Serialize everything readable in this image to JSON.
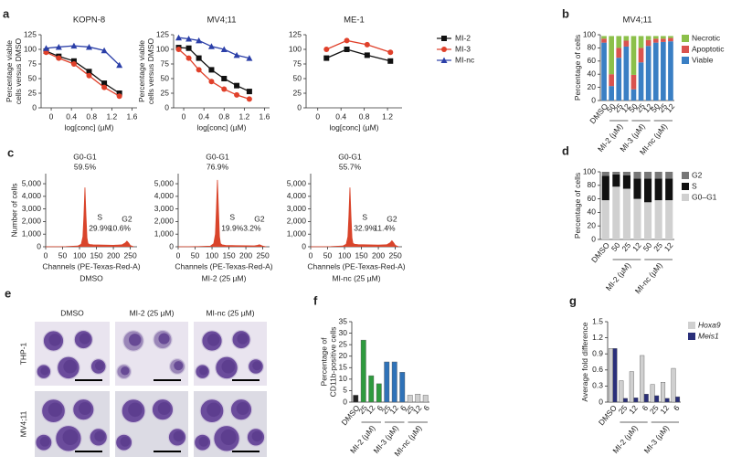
{
  "chart_data": [
    {
      "panel": "a",
      "type": "line",
      "title": "KOPN-8",
      "xlabel": "log[conc] (µM)",
      "ylabel": [
        "Percentage viable",
        "cells versus DMSO"
      ],
      "xlim": [
        -0.2,
        1.7
      ],
      "xticks": [
        0,
        0.4,
        0.8,
        1.2,
        1.6
      ],
      "ylim": [
        0,
        125
      ],
      "yticks": [
        0,
        25,
        50,
        75,
        100,
        125
      ],
      "x": [
        -0.1,
        0.15,
        0.45,
        0.75,
        1.05,
        1.35
      ],
      "series": [
        {
          "name": "MI-2",
          "color": "#111111",
          "marker": "square",
          "values": [
            97,
            88,
            80,
            62,
            42,
            25
          ]
        },
        {
          "name": "MI-3",
          "color": "#e0402a",
          "marker": "circle",
          "values": [
            95,
            85,
            75,
            55,
            35,
            20
          ]
        },
        {
          "name": "MI-nc",
          "color": "#2b3fa8",
          "marker": "triangle",
          "values": [
            102,
            104,
            106,
            104,
            98,
            73
          ]
        }
      ]
    },
    {
      "type": "line",
      "title": "MV4;11",
      "xlabel": "log[conc] (µM)",
      "ylabel": [
        "Percentage viable",
        "cells versus DMSO"
      ],
      "xlim": [
        -0.2,
        1.7
      ],
      "xticks": [
        0,
        0.4,
        0.8,
        1.2,
        1.6
      ],
      "ylim": [
        0,
        125
      ],
      "yticks": [
        0,
        25,
        50,
        75,
        100,
        125
      ],
      "x": [
        -0.1,
        0.1,
        0.3,
        0.55,
        0.8,
        1.05,
        1.3
      ],
      "series": [
        {
          "name": "MI-2",
          "color": "#111111",
          "marker": "square",
          "values": [
            103,
            102,
            85,
            65,
            50,
            38,
            28
          ]
        },
        {
          "name": "MI-3",
          "color": "#e0402a",
          "marker": "circle",
          "values": [
            100,
            85,
            65,
            45,
            32,
            22,
            15
          ]
        },
        {
          "name": "MI-nc",
          "color": "#2b3fa8",
          "marker": "triangle",
          "values": [
            120,
            118,
            115,
            105,
            100,
            90,
            85
          ]
        }
      ]
    },
    {
      "type": "line",
      "title": "ME-1",
      "xlabel": "log[conc] (µM)",
      "legend": "right-outside",
      "xlim": [
        -0.2,
        1.45
      ],
      "xticks": [
        0,
        0.4,
        0.8,
        1.2
      ],
      "ylim": [
        0,
        125
      ],
      "yticks": [
        0,
        25,
        50,
        75,
        100,
        125
      ],
      "x": [
        0.15,
        0.5,
        0.85,
        1.25
      ],
      "series": [
        {
          "name": "MI-2",
          "color": "#111111",
          "marker": "square",
          "values": [
            85,
            100,
            90,
            80
          ]
        },
        {
          "name": "MI-3",
          "color": "#e0402a",
          "marker": "circle",
          "values": [
            100,
            115,
            108,
            95
          ]
        },
        {
          "name": "MI-nc",
          "color": "#2b3fa8",
          "marker": "triangle",
          "values": [
            null,
            null,
            null,
            null
          ]
        }
      ]
    },
    {
      "panel": "b",
      "type": "bar",
      "stacked": true,
      "title": "MV4;11",
      "ylabel": "Percentage of cells",
      "legend": "right-outside",
      "ylim": [
        0,
        100
      ],
      "yticks": [
        0,
        20,
        40,
        60,
        80,
        100
      ],
      "categories": [
        "DMSO",
        "50",
        "25",
        "12",
        "50",
        "25",
        "12",
        "50",
        "25",
        "12"
      ],
      "groups": [
        "MI-2 (µM)",
        "MI-3 (µM)",
        "MI-nc (µM)"
      ],
      "series": [
        {
          "name": "Viable",
          "color": "#3a7fc4",
          "values": [
            88,
            22,
            65,
            82,
            17,
            58,
            83,
            88,
            89,
            90
          ]
        },
        {
          "name": "Apoptotic",
          "color": "#d9534f",
          "values": [
            6,
            18,
            15,
            9,
            22,
            22,
            9,
            6,
            5,
            5
          ]
        },
        {
          "name": "Necrotic",
          "color": "#8cc04a",
          "values": [
            4,
            58,
            18,
            7,
            59,
            18,
            6,
            4,
            4,
            3
          ]
        }
      ]
    },
    {
      "panel": "c",
      "type": "area",
      "xlabel": "Channels (PE-Texas-Red-A)",
      "ylabel": "Number of cells",
      "subtitle": "DMSO",
      "color": "#d9442b",
      "xlim": [
        0,
        270
      ],
      "xticks": [
        0,
        50,
        100,
        150,
        200,
        250
      ],
      "ylim": [
        0,
        5800
      ],
      "yticks": [
        0,
        {
          "value": 1000,
          "label": "1,000"
        },
        {
          "value": 2000,
          "label": "2,000"
        },
        {
          "value": 3000,
          "label": "3,000"
        },
        {
          "value": 4000,
          "label": "4,000"
        },
        {
          "value": 5000,
          "label": "5,000"
        }
      ],
      "x": [
        0,
        60,
        95,
        105,
        110,
        113,
        116,
        119,
        122,
        125,
        130,
        140,
        170,
        200,
        225,
        235,
        240,
        245,
        250,
        260
      ],
      "values": [
        0,
        20,
        60,
        200,
        800,
        2500,
        4700,
        2500,
        700,
        250,
        180,
        150,
        130,
        120,
        150,
        300,
        450,
        300,
        100,
        0
      ],
      "annotations": [
        {
          "phase": "G0-G1",
          "percent": "59.5%"
        },
        {
          "phase": "S",
          "percent": "29.9%"
        },
        {
          "phase": "G2",
          "percent": "10.6%"
        }
      ]
    },
    {
      "type": "area",
      "xlabel": "Channels (PE-Texas-Red-A)",
      "subtitle": "MI-2 (25 µM)",
      "color": "#d9442b",
      "xlim": [
        0,
        270
      ],
      "xticks": [
        0,
        50,
        100,
        150,
        200,
        250
      ],
      "ylim": [
        0,
        5800
      ],
      "yticks": [
        0,
        {
          "value": 1000,
          "label": "1,000"
        },
        {
          "value": 2000,
          "label": "2,000"
        },
        {
          "value": 3000,
          "label": "3,000"
        },
        {
          "value": 4000,
          "label": "4,000"
        },
        {
          "value": 5000,
          "label": "5,000"
        }
      ],
      "x": [
        0,
        60,
        95,
        105,
        110,
        113,
        116,
        119,
        122,
        125,
        130,
        140,
        170,
        200,
        225,
        235,
        240,
        245,
        250,
        260
      ],
      "values": [
        0,
        20,
        50,
        250,
        1000,
        3000,
        5300,
        3000,
        800,
        250,
        150,
        110,
        90,
        80,
        70,
        120,
        160,
        110,
        50,
        0
      ],
      "annotations": [
        {
          "phase": "G0-G1",
          "percent": "76.9%"
        },
        {
          "phase": "S",
          "percent": "19.9%"
        },
        {
          "phase": "G2",
          "percent": "3.2%"
        }
      ]
    },
    {
      "type": "area",
      "xlabel": "Channels (PE-Texas-Red-A)",
      "subtitle": "MI-nc (25 µM)",
      "color": "#d9442b",
      "xlim": [
        0,
        270
      ],
      "xticks": [
        0,
        50,
        100,
        150,
        200,
        250
      ],
      "ylim": [
        0,
        5800
      ],
      "yticks": [
        0,
        {
          "value": 1000,
          "label": "1,000"
        },
        {
          "value": 2000,
          "label": "2,000"
        },
        {
          "value": 3000,
          "label": "3,000"
        },
        {
          "value": 4000,
          "label": "4,000"
        },
        {
          "value": 5000,
          "label": "5,000"
        }
      ],
      "x": [
        0,
        60,
        95,
        105,
        110,
        113,
        116,
        119,
        122,
        125,
        130,
        140,
        170,
        200,
        225,
        235,
        240,
        245,
        250,
        260
      ],
      "values": [
        0,
        20,
        60,
        200,
        800,
        2500,
        4700,
        2500,
        700,
        260,
        200,
        170,
        150,
        130,
        160,
        320,
        480,
        320,
        110,
        0
      ],
      "annotations": [
        {
          "phase": "G0-G1",
          "percent": "55.7%"
        },
        {
          "phase": "S",
          "percent": "32.9%"
        },
        {
          "phase": "G2",
          "percent": "11.4%"
        }
      ]
    },
    {
      "panel": "d",
      "type": "bar",
      "stacked": true,
      "ylabel": "Percentage of cells",
      "legend": "right-outside",
      "ylim": [
        0,
        100
      ],
      "yticks": [
        0,
        20,
        40,
        60,
        80,
        100
      ],
      "categories": [
        "DMSO",
        "50",
        "25",
        "12",
        "50",
        "25",
        "12"
      ],
      "groups": [
        "MI-2 (µM)",
        "MI-nc (µM)"
      ],
      "series": [
        {
          "name": "G0–G1",
          "color": "#d0d0d0",
          "values": [
            58,
            78,
            75,
            60,
            55,
            58,
            58
          ]
        },
        {
          "name": "S",
          "color": "#111111",
          "values": [
            36,
            18,
            20,
            30,
            35,
            32,
            32
          ]
        },
        {
          "name": "G2",
          "color": "#777777",
          "values": [
            6,
            4,
            5,
            10,
            10,
            10,
            10
          ]
        }
      ]
    },
    {
      "panel": "f",
      "type": "bar",
      "ylabel": [
        "Percentage of",
        "CD11b-positive cells"
      ],
      "ylim": [
        0,
        35
      ],
      "yticks": [
        0,
        5,
        10,
        15,
        20,
        25,
        30,
        35
      ],
      "categories": [
        "DMSO",
        "25",
        "12",
        "6",
        "25",
        "12",
        "6",
        "25",
        "12",
        "6"
      ],
      "groups": [
        "MI-2 (µM)",
        "MI-3 (µM)",
        "MI-nc (µM)"
      ],
      "values": [
        3,
        27,
        11.5,
        8,
        17.5,
        17.5,
        13,
        3,
        3.5,
        3
      ],
      "colors": [
        "#222222",
        "#2e9a3e",
        "#2e9a3e",
        "#2e9a3e",
        "#2f72b8",
        "#2f72b8",
        "#2f72b8",
        "#cfcfcf",
        "#cfcfcf",
        "#cfcfcf"
      ]
    },
    {
      "panel": "g",
      "type": "bar",
      "ylabel": "Average fold difference",
      "legend": "right-outside",
      "legend_italic": true,
      "ylim": [
        0,
        1.5
      ],
      "yticks": [
        0,
        0.3,
        0.6,
        0.9,
        1.2,
        1.5
      ],
      "categories": [
        "DMSO",
        "25",
        "12",
        "6",
        "25",
        "12",
        "6"
      ],
      "groups": [
        "MI-2 (µM)",
        "MI-3 (µM)"
      ],
      "series": [
        {
          "name": "Hoxa9",
          "color": "#d0d0d0",
          "values": [
            1.0,
            0.4,
            0.57,
            0.87,
            0.33,
            0.37,
            0.63
          ]
        },
        {
          "name": "Meis1",
          "color": "#2a2f7a",
          "values": [
            1.0,
            0.07,
            0.08,
            0.15,
            0.12,
            0.07,
            0.1
          ]
        }
      ]
    }
  ],
  "micrographs": {
    "panel": "e",
    "columns": [
      "DMSO",
      "MI-2 (25 µM)",
      "MI-nc (25 µM)"
    ],
    "rows": [
      "THP-1",
      "MV4;11"
    ]
  }
}
